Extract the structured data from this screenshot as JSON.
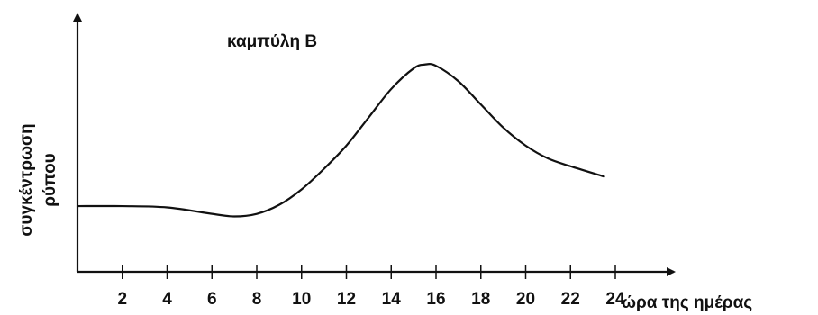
{
  "chart_data": {
    "type": "line",
    "title": "καμπύλη Β",
    "xlabel": "ώρα της ημέρας",
    "ylabel": "συγκέντρωση ρύπου",
    "ylabel_lines": [
      "συγκέντρωση",
      "ρύπου"
    ],
    "x_ticks": [
      2,
      4,
      6,
      8,
      10,
      12,
      14,
      16,
      18,
      20,
      22,
      24
    ],
    "xlim": [
      0,
      24
    ],
    "ylim": [
      0,
      1
    ],
    "grid": false,
    "series": [
      {
        "x": [
          0,
          2,
          4,
          6,
          7,
          8,
          9,
          10,
          11,
          12,
          13,
          14,
          15,
          15.5,
          16,
          17,
          18,
          19,
          20,
          21,
          22,
          23.5
        ],
        "y": [
          0.255,
          0.255,
          0.25,
          0.225,
          0.215,
          0.225,
          0.26,
          0.32,
          0.4,
          0.49,
          0.6,
          0.71,
          0.79,
          0.805,
          0.8,
          0.74,
          0.65,
          0.56,
          0.49,
          0.44,
          0.41,
          0.37
        ],
        "color": "#111111"
      }
    ]
  }
}
